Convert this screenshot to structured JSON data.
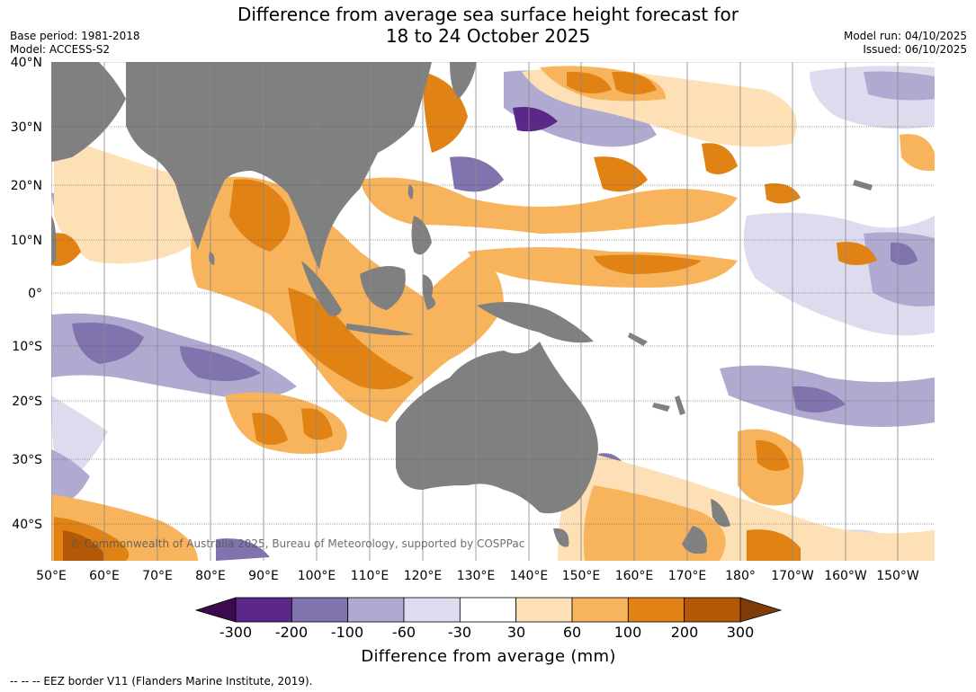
{
  "title_line1": "Difference from average sea surface height forecast for",
  "title_line2": "18 to 24 October 2025",
  "base_period": "Base period: 1981-2018",
  "model": "Model: ACCESS-S2",
  "model_run": "Model run: 04/10/2025",
  "issued": "Issued: 06/10/2025",
  "attribution": "© Commonwealth of Australia 2025, Bureau of Meteorology, supported by COSPPac",
  "footer": "--  --  -- EEZ border V11 (Flanders Marine Institute, 2019).",
  "lat_labels": [
    "40°N",
    "30°N",
    "20°N",
    "10°N",
    "0°",
    "10°S",
    "20°S",
    "30°S",
    "40°S"
  ],
  "lon_labels": [
    "50°E",
    "60°E",
    "70°E",
    "80°E",
    "90°E",
    "100°E",
    "110°E",
    "120°E",
    "130°E",
    "140°E",
    "150°E",
    "160°E",
    "170°E",
    "180°",
    "170°W",
    "160°W",
    "150°W"
  ],
  "colorbar": {
    "title": "Difference from average (mm)",
    "ticks": [
      "-300",
      "-200",
      "-100",
      "-60",
      "-30",
      "30",
      "60",
      "100",
      "200",
      "300"
    ],
    "colors": [
      "#3d0a4f",
      "#5b2789",
      "#8173ad",
      "#b0a9d0",
      "#dcdcee",
      "#ffffff",
      "#fde0b5",
      "#f7b45d",
      "#e08214",
      "#b35806",
      "#7f3b08"
    ]
  },
  "colors": {
    "land": "#808080",
    "ocean": "#ffffff"
  }
}
